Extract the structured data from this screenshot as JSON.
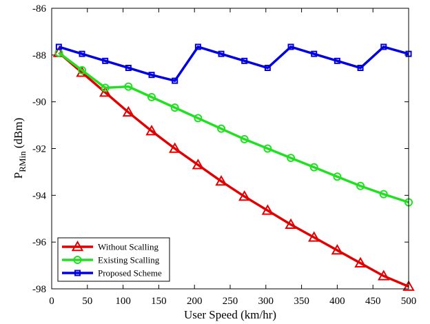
{
  "chart_data": {
    "type": "line",
    "xlabel": "User Speed (km/hr)",
    "ylabel_main": "P",
    "ylabel_sub": "RMin",
    "ylabel_unit": " (dBm)",
    "xlim": [
      0,
      500
    ],
    "ylim": [
      -98,
      -86
    ],
    "xticks": [
      0,
      50,
      100,
      150,
      200,
      250,
      300,
      350,
      400,
      450,
      500
    ],
    "yticks": [
      -98,
      -96,
      -94,
      -92,
      -90,
      -88,
      -86
    ],
    "grid": false,
    "legend_position": "bottom-left",
    "x": [
      10,
      42.5,
      75,
      107.5,
      140,
      172.5,
      205,
      237.5,
      270,
      302.5,
      335,
      367.5,
      400,
      432.5,
      465,
      500
    ],
    "series": [
      {
        "name": "Without Scalling",
        "color": "#e30000",
        "marker": "triangle",
        "values": [
          -87.9,
          -88.75,
          -89.6,
          -90.45,
          -91.25,
          -92.0,
          -92.7,
          -93.4,
          -94.05,
          -94.65,
          -95.25,
          -95.8,
          -96.35,
          -96.9,
          -97.45,
          -97.9
        ]
      },
      {
        "name": "Existing Scalling",
        "color": "#20e020",
        "marker": "circle",
        "values": [
          -87.9,
          -88.65,
          -89.4,
          -89.35,
          -89.8,
          -90.25,
          -90.7,
          -91.15,
          -91.6,
          -92.0,
          -92.4,
          -92.8,
          -93.2,
          -93.6,
          -93.95,
          -94.3
        ]
      },
      {
        "name": "Proposed Scheme",
        "color": "#0000e0",
        "marker": "square",
        "values": [
          -87.65,
          -87.95,
          -88.25,
          -88.55,
          -88.85,
          -89.1,
          -87.65,
          -87.95,
          -88.25,
          -88.55,
          -87.65,
          -87.95,
          -88.25,
          -88.55,
          -87.65,
          -87.95
        ]
      }
    ]
  }
}
